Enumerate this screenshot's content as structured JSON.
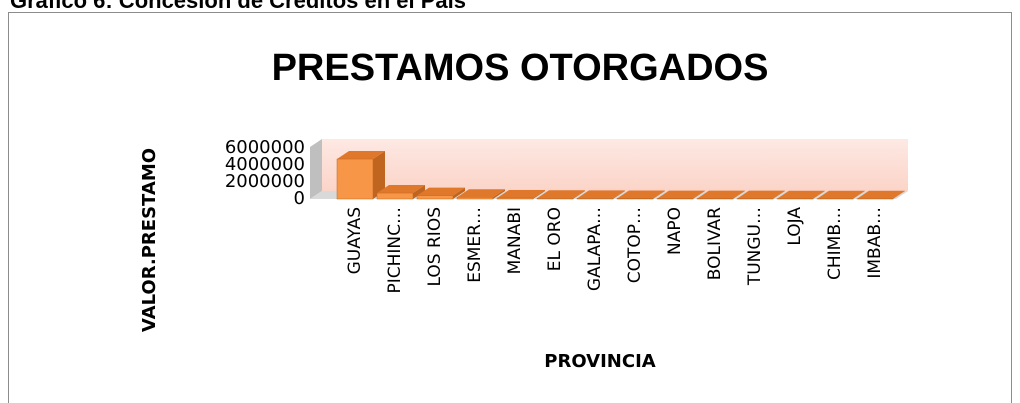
{
  "header": {
    "title": "Gráfico 6: Concesión de Créditos en el País"
  },
  "chart_data": {
    "type": "bar3d",
    "title": "PRESTAMOS OTORGADOS",
    "x_label": "PROVINCIA",
    "y_label": "VALOR.PRESTAMO",
    "categories": [
      "GUAYAS",
      "PICHINC…",
      "LOS RIOS",
      "ESMER…",
      "MANABI",
      "EL ORO",
      "GALAPA…",
      "COTOP…",
      "NAPO",
      "BOLIVAR",
      "TUNGU…",
      "LOJA",
      "CHIMB…",
      "IMBAB…"
    ],
    "values": [
      4700000,
      700000,
      400000,
      200000,
      120000,
      90000,
      70000,
      60000,
      50000,
      45000,
      40000,
      35000,
      30000,
      25000
    ],
    "color": "#f79646",
    "ylim": [
      0,
      6000000
    ],
    "yticks": [
      0,
      2000000,
      4000000,
      6000000
    ],
    "grid": false
  }
}
